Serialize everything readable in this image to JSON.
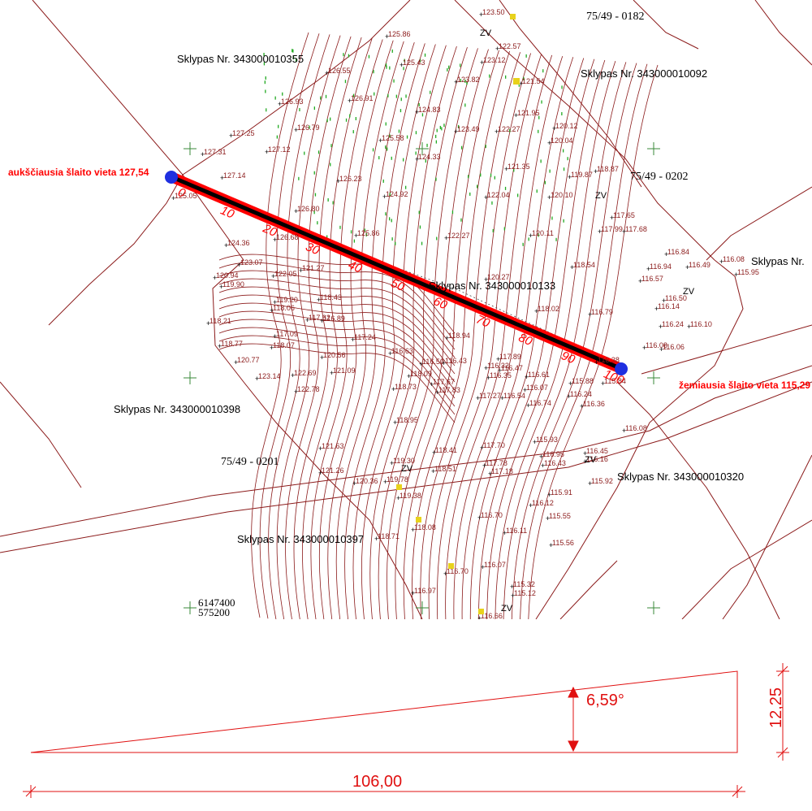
{
  "map": {
    "parcels": [
      "Sklypas Nr. 343000010355",
      "Sklypas Nr. 343000010092",
      "Sklypas Nr. 343000010133",
      "Sklypas Nr. 343000010398",
      "Sklypas Nr. 343000010320",
      "Sklypas Nr. 343000010397",
      "Sklypas Nr."
    ],
    "blocks": [
      "75/49 - 0182",
      "75/49 - 0202",
      "75/49 - 0201"
    ],
    "coordinates": [
      "6147400",
      "575200"
    ],
    "highest_point_label": "aukščiausia šlaito vieta 127,54",
    "lowest_point_label": "žemiausia šlaito vieta 115,29",
    "chainage_ticks": [
      "0",
      "10",
      "20",
      "30",
      "40",
      "50",
      "60",
      "70",
      "80",
      "90",
      "100"
    ],
    "spot_heights": [
      "123.50",
      "125.86",
      "122.57",
      "123.12",
      "121.54",
      "126.55",
      "125.43",
      "123.82",
      "126.93",
      "126.91",
      "124.83",
      "121.95",
      "120.12",
      "127.25",
      "126.79",
      "125.58",
      "123.49",
      "122.27",
      "120.04",
      "127.31",
      "127.12",
      "124.33",
      "121.35",
      "119.87",
      "118.87",
      "127.14",
      "126.23",
      "124.92",
      "122.04",
      "120.10",
      "125.05",
      "126.80",
      "117.65",
      "124.36",
      "126.68",
      "125.86",
      "122.27",
      "120.11",
      "117.99",
      "117.68",
      "116.84",
      "116.08",
      "123.07",
      "121.27",
      "118.54",
      "116.94",
      "116.49",
      "115.95",
      "120.94",
      "122.05",
      "120.27",
      "116.57",
      "119.90",
      "119.20",
      "118.43",
      "118.02",
      "116.79",
      "116.50",
      "116.14",
      "118.21",
      "118.06",
      "117.62",
      "116.89",
      "116.24",
      "116.10",
      "117.09",
      "117.24",
      "118.94",
      "116.08",
      "116.06",
      "118.77",
      "118.07",
      "116.63",
      "117.89",
      "116.38",
      "120.77",
      "120.56",
      "116.50",
      "116.43",
      "116.47",
      "116.61",
      "115.84",
      "123.14",
      "122.69",
      "121.09",
      "118.09",
      "117.67",
      "122.78",
      "118.73",
      "116.32",
      "116.35",
      "115.88",
      "116.07",
      "116.54",
      "116.24",
      "118.95",
      "117.83",
      "117.27",
      "116.74",
      "116.36",
      "116.08",
      "115.93",
      "116.45",
      "116.16",
      "121.63",
      "118.41",
      "117.70",
      "116.95",
      "116.43",
      "121.26",
      "119.30",
      "118.51",
      "117.78",
      "117.18",
      "115.92",
      "120.36",
      "119.78",
      "119.38",
      "115.91",
      "116.70",
      "116.12",
      "118.08",
      "116.11",
      "115.55",
      "118.71",
      "115.56",
      "116.70",
      "116.07",
      "115.32",
      "116.97",
      "115.12",
      "116.66"
    ],
    "markers": [
      "ZV",
      "ZV",
      "ZV",
      "ZV",
      "ZV"
    ]
  },
  "profile": {
    "angle_label": "6,59°",
    "height_label": "12,25",
    "length_label": "106,00"
  },
  "colors": {
    "contour": "#8b1a1a",
    "accent": "#ff0000",
    "section_line": "#000000",
    "point_marker": "#1f2fe0",
    "vegetation": "#22aa22",
    "crosshair": "#3a8a3a"
  }
}
